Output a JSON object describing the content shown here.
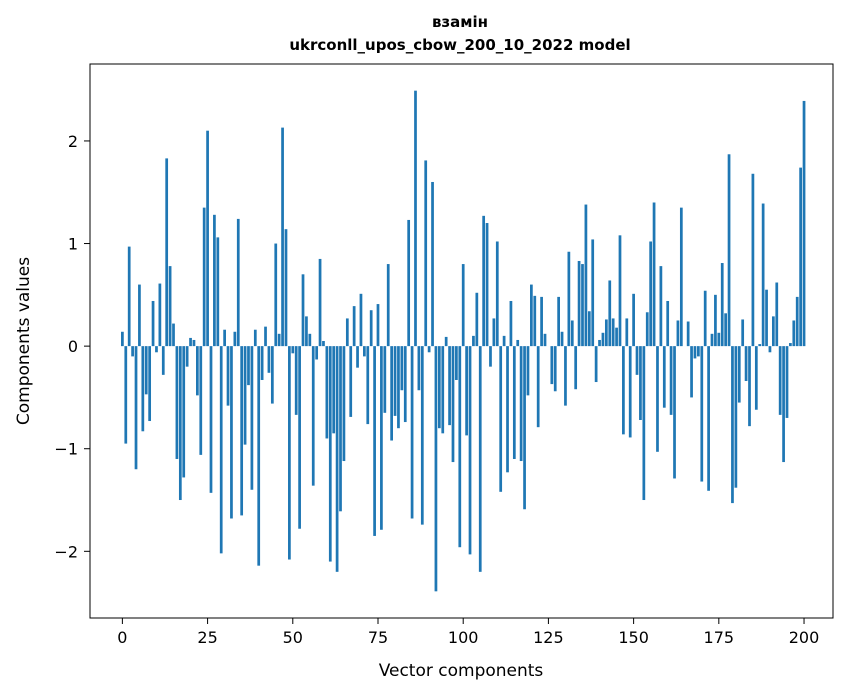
{
  "chart_data": {
    "type": "bar",
    "title_line1": "взамін",
    "title_line2": "ukrconll_upos_cbow_200_10_2022 model",
    "xlabel": "Vector components",
    "ylabel": "Components values",
    "xlim": [
      -9.5,
      208.5
    ],
    "ylim": [
      -2.65,
      2.75
    ],
    "xticks": [
      0,
      25,
      50,
      75,
      100,
      125,
      150,
      175,
      200
    ],
    "yticks": [
      -2,
      -1,
      0,
      1,
      2
    ],
    "ytick_labels": [
      "−2",
      "−1",
      "0",
      "1",
      "2"
    ],
    "grid": false,
    "bar_color": "#1f77b4",
    "values": [
      0.14,
      -0.95,
      0.97,
      -0.1,
      -1.2,
      0.6,
      -0.83,
      -0.47,
      -0.73,
      0.44,
      -0.06,
      0.61,
      -0.28,
      1.83,
      0.78,
      0.22,
      -1.1,
      -1.5,
      -1.28,
      -0.2,
      0.08,
      0.06,
      -0.48,
      -1.06,
      1.35,
      2.1,
      -1.43,
      1.28,
      1.06,
      -2.02,
      0.16,
      -0.58,
      -1.68,
      0.14,
      1.24,
      -1.65,
      -0.96,
      -0.38,
      -1.4,
      0.16,
      -2.14,
      -0.33,
      0.19,
      -0.26,
      -0.56,
      1.0,
      0.12,
      2.13,
      1.14,
      -2.08,
      -0.07,
      -0.67,
      -1.78,
      0.7,
      0.29,
      0.12,
      -1.36,
      -0.13,
      0.85,
      0.05,
      -0.9,
      -2.1,
      -0.85,
      -2.2,
      -1.61,
      -1.12,
      0.27,
      -0.69,
      0.39,
      -0.21,
      0.51,
      -0.1,
      -0.76,
      0.35,
      -1.85,
      0.41,
      -1.79,
      -0.65,
      0.8,
      -0.92,
      -0.68,
      -0.8,
      -0.43,
      -0.74,
      1.23,
      -1.68,
      2.49,
      -0.43,
      -1.74,
      1.81,
      -0.06,
      1.6,
      -2.39,
      -0.8,
      -0.85,
      0.09,
      -0.77,
      -1.13,
      -0.33,
      -1.96,
      0.8,
      -0.87,
      -2.03,
      0.1,
      0.52,
      -2.2,
      1.27,
      1.2,
      -0.2,
      0.27,
      1.02,
      -1.42,
      0.1,
      -1.23,
      0.44,
      -1.1,
      0.06,
      -1.12,
      -1.59,
      -0.48,
      0.6,
      0.49,
      -0.79,
      0.48,
      0.12,
      0.0,
      -0.37,
      -0.44,
      0.48,
      0.14,
      -0.58,
      0.92,
      0.25,
      -0.42,
      0.83,
      0.8,
      1.38,
      0.34,
      1.04,
      -0.35,
      0.06,
      0.13,
      0.26,
      0.64,
      0.27,
      0.18,
      1.08,
      -0.86,
      0.27,
      -0.89,
      0.51,
      -0.28,
      -0.72,
      -1.5,
      0.33,
      1.02,
      1.4,
      -1.03,
      0.78,
      -0.6,
      0.44,
      -0.67,
      -1.29,
      0.25,
      1.35,
      0.0,
      0.24,
      -0.5,
      -0.12,
      -0.1,
      -1.32,
      0.54,
      -1.41,
      0.12,
      0.5,
      0.13,
      0.81,
      0.32,
      1.87,
      -1.53,
      -1.38,
      -0.55,
      0.26,
      -0.34,
      -0.78,
      1.68,
      -0.62,
      0.02,
      1.39,
      0.55,
      -0.06,
      0.29,
      0.62,
      -0.67,
      -1.13,
      -0.7,
      0.03,
      0.25,
      0.48,
      1.74,
      2.39
    ]
  }
}
